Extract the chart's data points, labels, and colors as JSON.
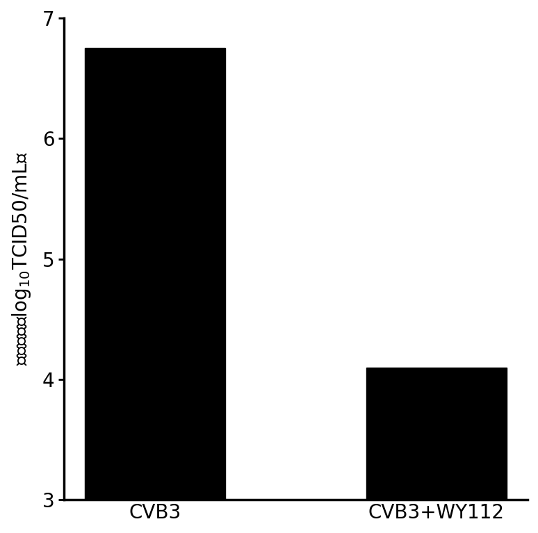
{
  "categories": [
    "CVB3",
    "CVB3+WY112"
  ],
  "values": [
    6.75,
    4.1
  ],
  "bar_colors": [
    "#000000",
    "#000000"
  ],
  "ylim": [
    3,
    7
  ],
  "yticks": [
    3,
    4,
    5,
    6,
    7
  ],
  "ylabel": "病毒满度（log₁₀TCID50/mL）",
  "bar_width": 0.5,
  "background_color": "#ffffff",
  "tick_label_fontsize": 20,
  "ylabel_fontsize": 20,
  "xlabel_fontsize": 20
}
